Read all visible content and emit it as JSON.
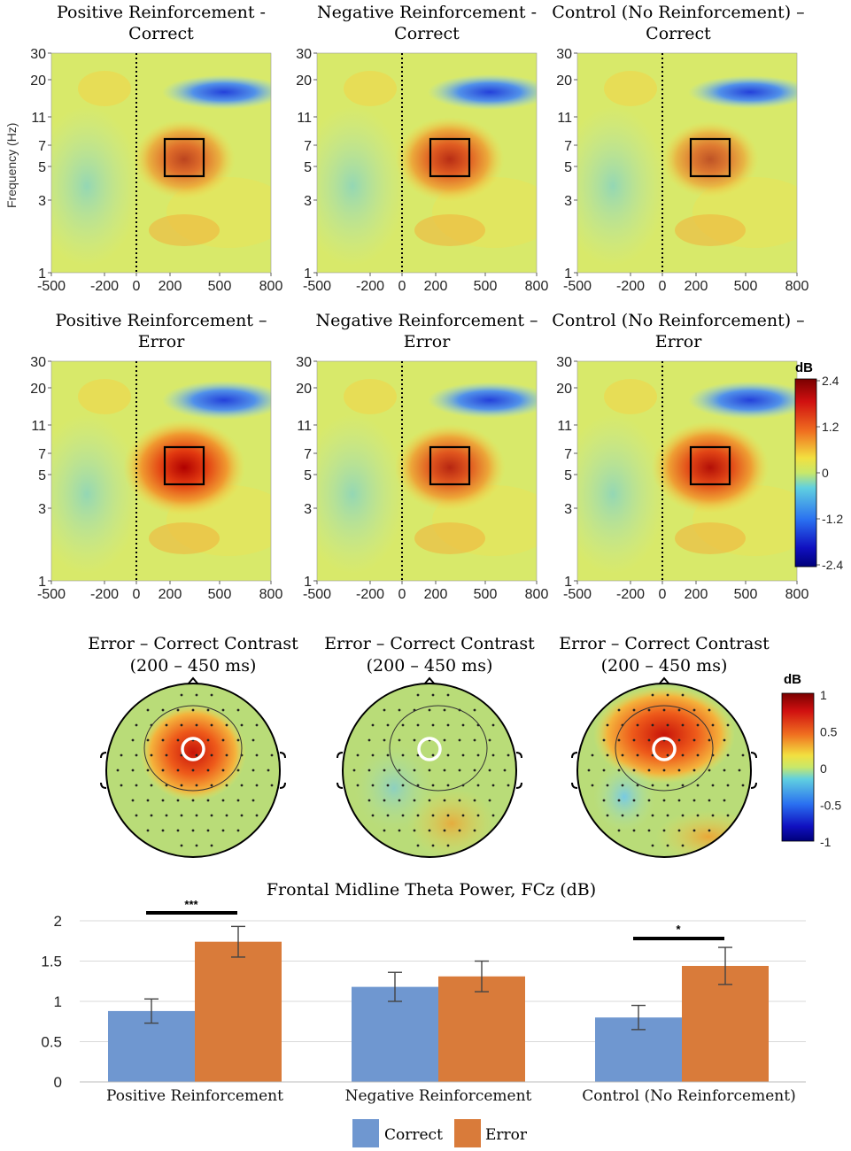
{
  "figure": {
    "tf_panels": [
      {
        "title_line1": "Positive Reinforcement -",
        "title_line2": "Correct",
        "intensity": 0.55
      },
      {
        "title_line1": "Negative Reinforcement -",
        "title_line2": "Correct",
        "intensity": 0.7
      },
      {
        "title_line1": "Control (No Reinforcement) –",
        "title_line2": "Correct",
        "intensity": 0.45
      },
      {
        "title_line1": "Positive Reinforcement –",
        "title_line2": "Error",
        "intensity": 1.0
      },
      {
        "title_line1": "Negative Reinforcement –",
        "title_line2": "Error",
        "intensity": 0.75
      },
      {
        "title_line1": "Control (No Reinforcement) –",
        "title_line2": "Error",
        "intensity": 0.9
      }
    ],
    "tf_axes": {
      "ylabel": "Frequency (Hz)",
      "y_ticks": [
        "30",
        "20",
        "11",
        "7",
        "5",
        "3",
        "1"
      ],
      "x_ticks": [
        "-500",
        "-200",
        "0",
        "200",
        "500",
        "800"
      ]
    },
    "tf_colorbar": {
      "unit": "dB",
      "ticks": [
        "2.4",
        "1.2",
        "0",
        "-1.2",
        "-2.4"
      ]
    },
    "topo_panels": [
      {
        "title_line1": "Error – Correct Contrast",
        "title_line2": "(200 – 450 ms)"
      },
      {
        "title_line1": "Error – Correct Contrast",
        "title_line2": "(200 – 450 ms)"
      },
      {
        "title_line1": "Error – Correct Contrast",
        "title_line2": "(200 – 450 ms)"
      }
    ],
    "topo_colorbar": {
      "unit": "dB",
      "ticks": [
        "1",
        "0.5",
        "0",
        "-0.5",
        "-1"
      ]
    }
  },
  "chart_data": {
    "type": "bar",
    "title": "Frontal Midline Theta Power, FCz (dB)",
    "categories": [
      "Positive Reinforcement",
      "Negative Reinforcement",
      "Control (No Reinforcement)"
    ],
    "series": [
      {
        "name": "Correct",
        "values": [
          0.88,
          1.18,
          0.8
        ],
        "errors": [
          0.15,
          0.18,
          0.15
        ],
        "color": "#6f97d0"
      },
      {
        "name": "Error",
        "values": [
          1.74,
          1.31,
          1.44
        ],
        "errors": [
          0.19,
          0.19,
          0.23
        ],
        "color": "#d97b3a"
      }
    ],
    "ylim": [
      0,
      2
    ],
    "y_ticks": [
      "2",
      "1.5",
      "1",
      "0.5",
      "0"
    ],
    "significance": [
      "***",
      "",
      "*"
    ],
    "legend_position": "bottom"
  }
}
